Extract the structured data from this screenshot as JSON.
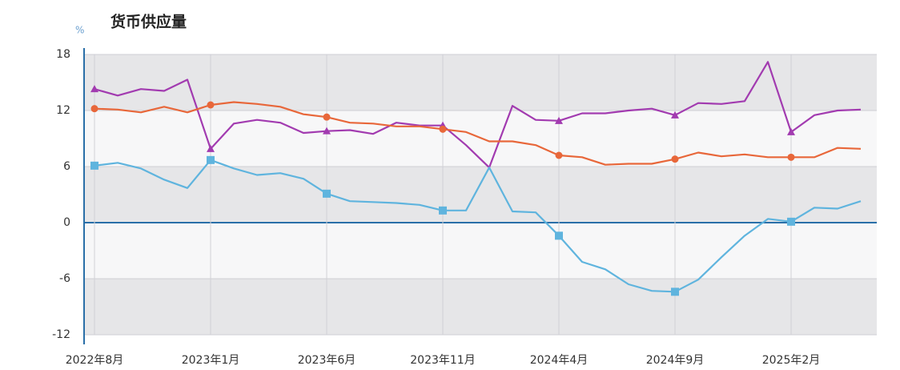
{
  "chart_data": {
    "type": "line",
    "title": "货币供应量",
    "y_label": "%",
    "categories": [
      "2022年8月",
      null,
      null,
      null,
      null,
      "2023年1月",
      null,
      null,
      null,
      null,
      "2023年6月",
      null,
      null,
      null,
      null,
      "2023年11月",
      null,
      null,
      null,
      null,
      "2024年4月",
      null,
      null,
      null,
      null,
      "2024年9月",
      null,
      null,
      null,
      null,
      "2025年2月",
      null,
      null,
      null
    ],
    "series": [
      {
        "color": "#a23bb0",
        "marker": "triangle",
        "values": [
          14.3,
          13.6,
          14.3,
          14.1,
          15.3,
          7.9,
          10.6,
          11.0,
          10.7,
          9.6,
          9.8,
          9.9,
          9.5,
          10.7,
          10.4,
          10.4,
          8.3,
          5.9,
          12.5,
          11.0,
          10.9,
          11.7,
          11.7,
          12.0,
          12.2,
          11.5,
          12.8,
          12.7,
          13.0,
          17.2,
          9.7,
          11.5,
          12.0,
          12.1
        ]
      },
      {
        "color": "#e8673a",
        "marker": "circle",
        "values": [
          12.2,
          12.1,
          11.8,
          12.4,
          11.8,
          12.6,
          12.9,
          12.7,
          12.4,
          11.6,
          11.3,
          10.7,
          10.6,
          10.3,
          10.3,
          10.0,
          9.7,
          8.7,
          8.7,
          8.3,
          7.2,
          7.0,
          6.2,
          6.3,
          6.3,
          6.8,
          7.5,
          7.1,
          7.3,
          7.0,
          7.0,
          7.0,
          8.0,
          7.9
        ]
      },
      {
        "color": "#5fb4de",
        "marker": "square",
        "values": [
          6.1,
          6.4,
          5.8,
          4.6,
          3.7,
          6.7,
          5.8,
          5.1,
          5.3,
          4.7,
          3.1,
          2.3,
          2.2,
          2.1,
          1.9,
          1.3,
          1.3,
          5.9,
          1.2,
          1.1,
          -1.4,
          -4.2,
          -5.0,
          -6.6,
          -7.3,
          -7.4,
          -6.1,
          -3.7,
          -1.4,
          0.4,
          0.1,
          1.6,
          1.5,
          2.3
        ]
      }
    ],
    "ylim": [
      -12,
      18
    ],
    "yticks": [
      18,
      12,
      6,
      0,
      -6,
      -12
    ],
    "grid": true
  }
}
